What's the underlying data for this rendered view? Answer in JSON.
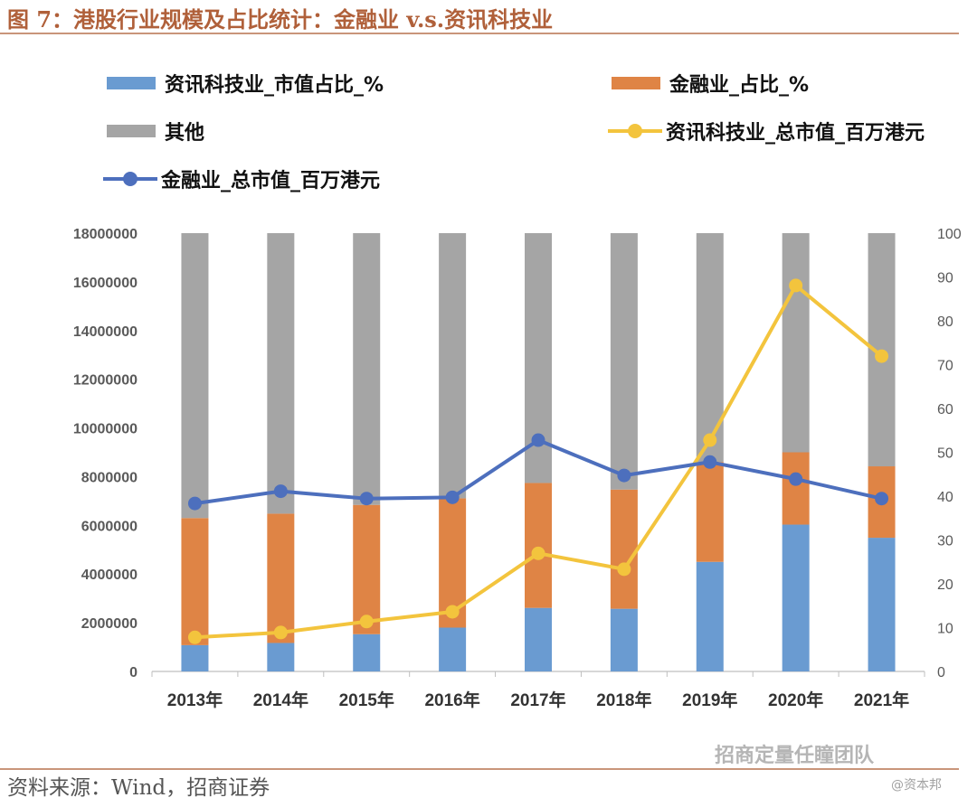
{
  "header": {
    "title": "图 7：港股行业规模及占比统计：金融业 v.s.资讯科技业"
  },
  "footer": {
    "source": "资料来源：Wind，招商证券"
  },
  "watermark": {
    "text": "招商定量任瞳团队",
    "sub": "@资本邦"
  },
  "colors": {
    "it_share": "#6a9bd1",
    "fin_share": "#df8445",
    "other": "#a5a5a5",
    "it_mv": "#f3c43d",
    "fin_mv": "#4d6fbd",
    "title": "#b0603a"
  },
  "chart_data": {
    "type": "bar",
    "stacked": true,
    "title": "港股行业规模及占比统计：金融业 v.s.资讯科技业",
    "categories": [
      "2013年",
      "2014年",
      "2015年",
      "2016年",
      "2017年",
      "2018年",
      "2019年",
      "2020年",
      "2021年"
    ],
    "y_left": {
      "min": 0,
      "max": 18000000,
      "ticks": [
        "0",
        "2000000",
        "4000000",
        "6000000",
        "8000000",
        "10000000",
        "12000000",
        "14000000",
        "16000000",
        "18000000"
      ]
    },
    "y_right": {
      "min": 0,
      "max": 100,
      "ticks": [
        "0",
        "10",
        "20",
        "30",
        "40",
        "50",
        "60",
        "70",
        "80",
        "90",
        "100"
      ]
    },
    "series": [
      {
        "name": "资讯科技业_市值占比_%",
        "kind": "bar",
        "axis": "right",
        "values": [
          6,
          6.5,
          8.5,
          10,
          14.5,
          14.3,
          25,
          33.5,
          30.5
        ]
      },
      {
        "name": "金融业_占比_%",
        "kind": "bar",
        "axis": "right",
        "values": [
          29,
          29.5,
          29.5,
          29.5,
          28.5,
          27.2,
          22.8,
          16.5,
          16.3
        ]
      },
      {
        "name": "其他",
        "kind": "bar",
        "axis": "right",
        "values": [
          65,
          64,
          62,
          60.5,
          57,
          58.5,
          52.2,
          50,
          53.2
        ]
      },
      {
        "name": "资讯科技业_总市值_百万港元",
        "kind": "line",
        "axis": "left",
        "values": [
          1400000,
          1600000,
          2050000,
          2450000,
          4850000,
          4200000,
          9500000,
          15850000,
          12950000
        ]
      },
      {
        "name": "金融业_总市值_百万港元",
        "kind": "line",
        "axis": "left",
        "values": [
          6900000,
          7400000,
          7100000,
          7150000,
          9500000,
          8050000,
          8600000,
          7900000,
          7100000
        ]
      }
    ],
    "legend": [
      {
        "label": "资讯科技业_市值占比_%",
        "kind": "bar",
        "color": "#6a9bd1"
      },
      {
        "label": "金融业_占比_%",
        "kind": "bar",
        "color": "#df8445"
      },
      {
        "label": "其他",
        "kind": "bar",
        "color": "#a5a5a5"
      },
      {
        "label": "资讯科技业_总市值_百万港元",
        "kind": "line",
        "color": "#f3c43d"
      },
      {
        "label": "金融业_总市值_百万港元",
        "kind": "line",
        "color": "#4d6fbd"
      }
    ]
  }
}
